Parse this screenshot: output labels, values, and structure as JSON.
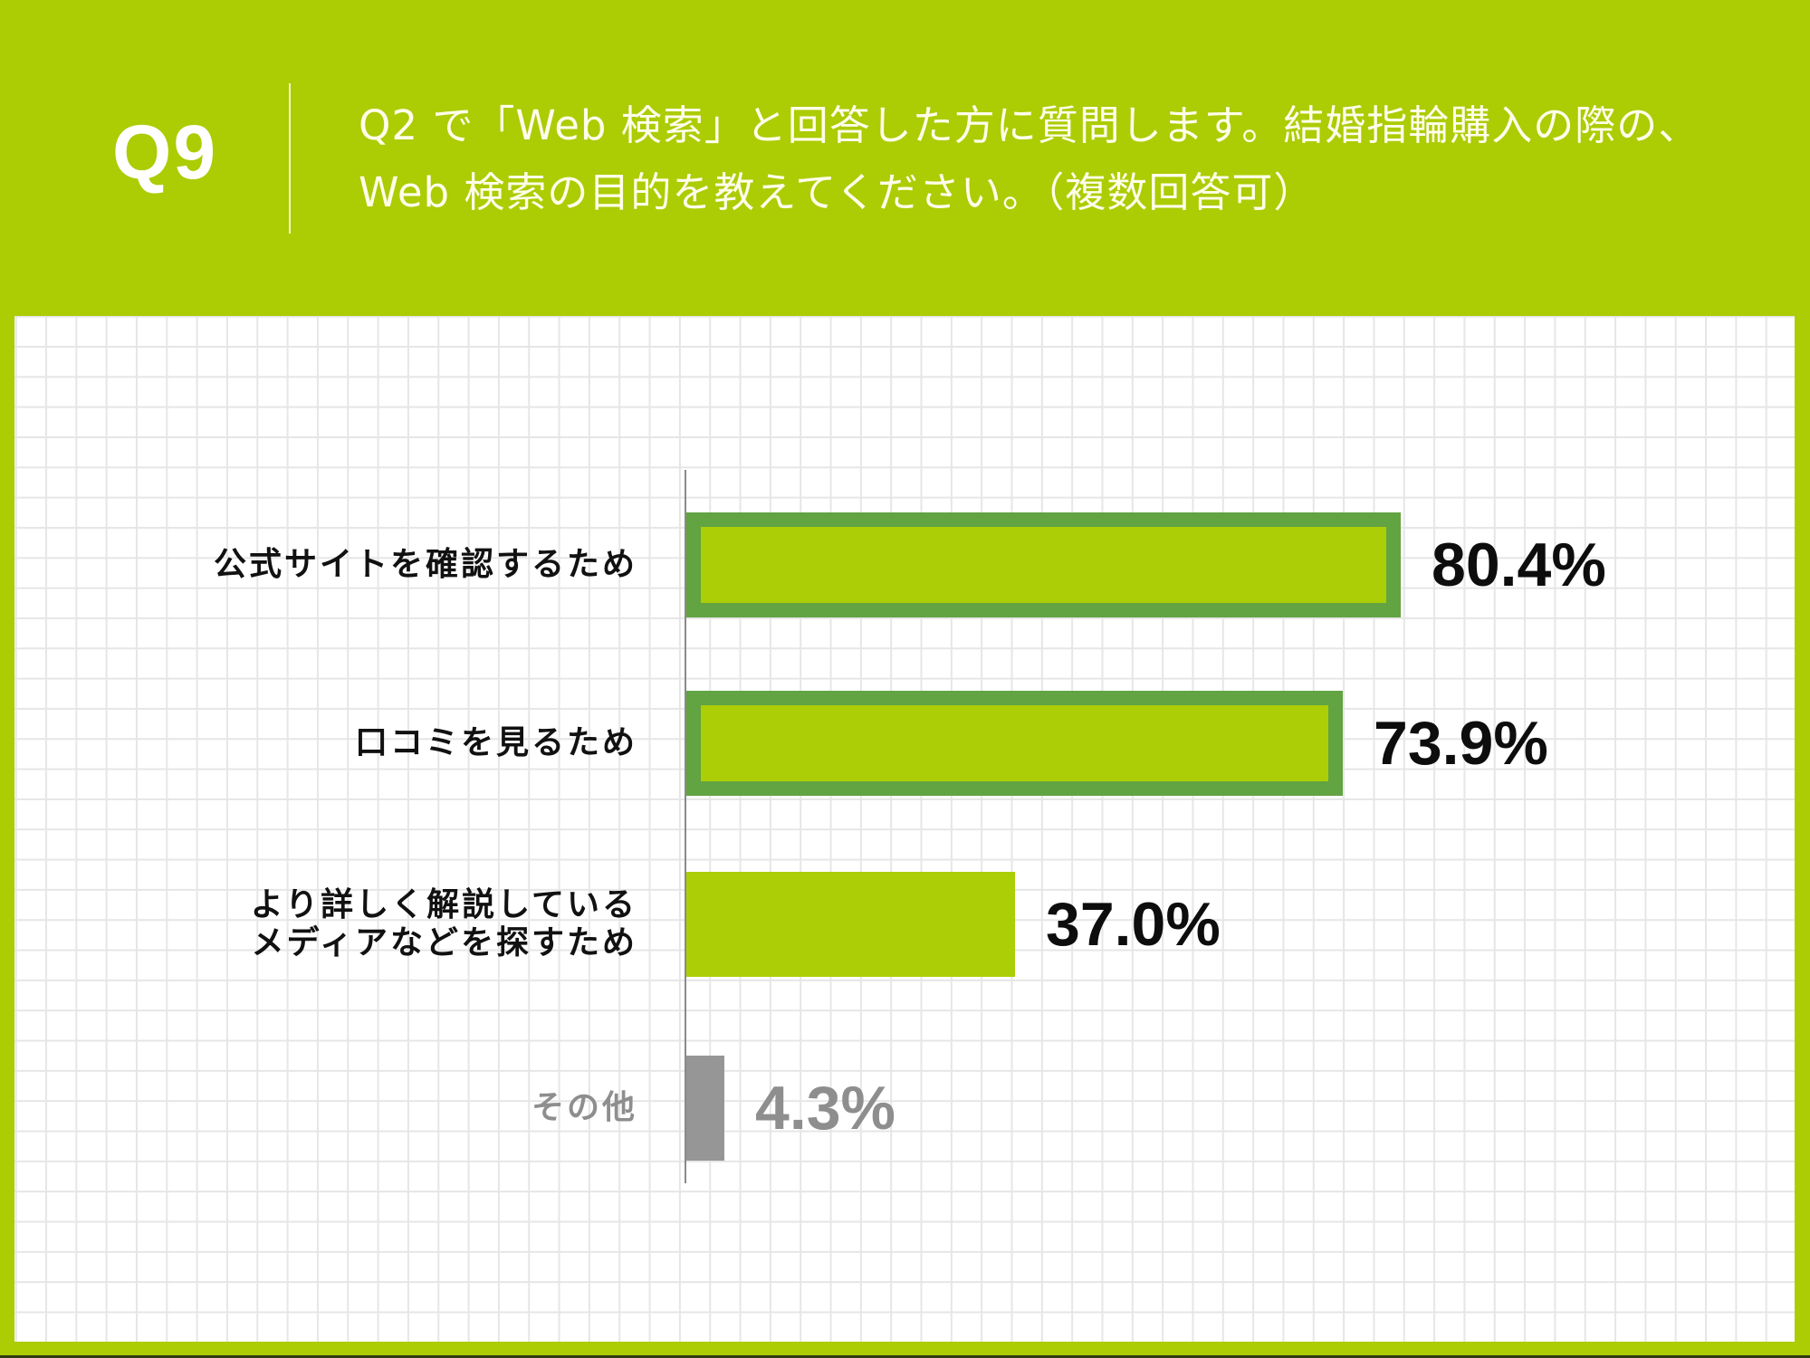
{
  "header": {
    "question_number": "Q9",
    "question_line1": "Q2 で「Web 検索」と回答した方に質問します。結婚指輪購入の際の、",
    "question_line2": "Web 検索の目的を教えてください。（複数回答可）",
    "background_color": "#accc04",
    "text_color": "#fffdea"
  },
  "colors": {
    "bar_fill": "#acce06",
    "highlight_border": "#62a342",
    "other_bar": "#969696",
    "axis": "#8a8a8a",
    "grid": "#e6e6e6"
  },
  "chart_data": {
    "type": "bar",
    "orientation": "horizontal",
    "title": "Q2 で「Web 検索」と回答した方に質問します。結婚指輪購入の際の、Web 検索の目的を教えてください。（複数回答可）",
    "categories": [
      "公式サイトを確認するため",
      "口コミを見るため",
      "より詳しく解説している\nメディアなどを探すため",
      "その他"
    ],
    "values": [
      80.4,
      73.9,
      37.0,
      4.3
    ],
    "value_labels": [
      "80.4%",
      "73.9%",
      "37.0%",
      "4.3%"
    ],
    "highlighted": [
      true,
      true,
      false,
      false
    ],
    "unit": "%",
    "xlabel": "",
    "ylabel": "",
    "xlim": [
      0,
      100
    ],
    "grid": true,
    "legend": "none"
  },
  "bars": [
    {
      "label_lines": [
        "公式サイトを確認するため"
      ],
      "value": 80.4,
      "value_label": "80.4%",
      "style": "highlight"
    },
    {
      "label_lines": [
        "口コミを見るため"
      ],
      "value": 73.9,
      "value_label": "73.9%",
      "style": "highlight"
    },
    {
      "label_lines": [
        "より詳しく解説している",
        "メディアなどを探すため"
      ],
      "value": 37.0,
      "value_label": "37.0%",
      "style": "plain"
    },
    {
      "label_lines": [
        "その他"
      ],
      "value": 4.3,
      "value_label": "4.3%",
      "style": "other"
    }
  ]
}
